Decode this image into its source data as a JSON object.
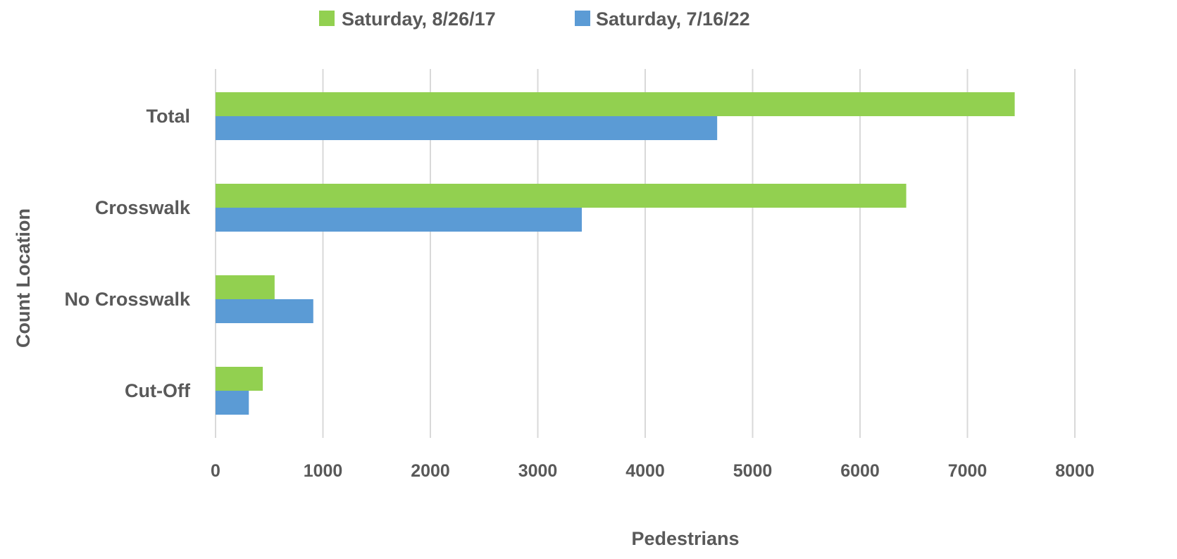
{
  "colors": {
    "series_2017": "#92D050",
    "series_2022": "#5B9BD5",
    "grid": "#D9D9D9",
    "text": "#595959"
  },
  "chart_data": {
    "type": "bar",
    "orientation": "horizontal",
    "title": "",
    "xlabel": "Pedestrians",
    "ylabel": "Count Location",
    "categories": [
      "Total",
      "Crosswalk",
      "No Crosswalk",
      "Cut-Off"
    ],
    "series": [
      {
        "name": "Saturday, 8/26/17",
        "values": [
          7440,
          6430,
          550,
          440
        ]
      },
      {
        "name": "Saturday, 7/16/22",
        "values": [
          4670,
          3410,
          910,
          310
        ]
      }
    ],
    "xlim": [
      0,
      8000
    ],
    "xticks": [
      "0",
      "1000",
      "2000",
      "3000",
      "4000",
      "5000",
      "6000",
      "7000",
      "8000"
    ],
    "grid": true,
    "legend_position": "top"
  }
}
